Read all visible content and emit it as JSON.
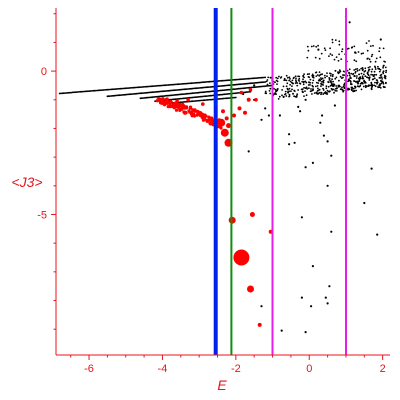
{
  "chart_data": {
    "type": "scatter",
    "xlabel": "E",
    "ylabel": "<J3>",
    "xlim": [
      -6.9,
      2.2
    ],
    "ylim": [
      -9.9,
      2.2
    ],
    "grid": false,
    "x_ticks": [
      -6,
      -4,
      -2,
      0,
      2
    ],
    "y_ticks": [
      0,
      -5
    ],
    "colors": {
      "axis": "#e8141c",
      "black_series": "#000000",
      "red_series": "#ff0000",
      "blue_line": "#0022ee",
      "green_line": "#128c12",
      "magenta_line": "#e81ee8"
    },
    "vertical_lines": [
      {
        "x": -2.55,
        "color": "#0022ee",
        "width": 4
      },
      {
        "x": -2.12,
        "color": "#128c12",
        "width": 2
      },
      {
        "x": -1.0,
        "color": "#e81ee8",
        "width": 2
      },
      {
        "x": 1.0,
        "color": "#e81ee8",
        "width": 2
      }
    ],
    "series": [
      {
        "color": "#000000",
        "branches": [
          {
            "x0": -6.8,
            "y0": -0.78,
            "x1": -1.2,
            "y1": -0.22,
            "n": 160
          },
          {
            "x0": -5.5,
            "y0": -0.88,
            "x1": -1.2,
            "y1": -0.38,
            "n": 130
          },
          {
            "x0": -4.6,
            "y0": -0.95,
            "x1": -1.0,
            "y1": -0.5,
            "n": 110
          },
          {
            "x0": -4.2,
            "y0": -1.05,
            "x1": -1.6,
            "y1": -0.72,
            "n": 75
          },
          {
            "x0": -3.8,
            "y0": -1.12,
            "x1": -2.0,
            "y1": -0.92,
            "n": 50
          }
        ],
        "cloud": {
          "x0": -1.2,
          "x1": 2.1,
          "y0": -1.2,
          "y1": 0.5,
          "n": 500,
          "seed": 7
        },
        "upper_cloud": {
          "x0": -0.2,
          "x1": 2.1,
          "y0": 0.3,
          "y1": 1.1,
          "n": 60,
          "seed": 11
        },
        "scattered": [
          [
            -1.3,
            -1.7
          ],
          [
            -1.2,
            -1.3
          ],
          [
            -1.1,
            -1.55
          ],
          [
            -0.8,
            -1.55
          ],
          [
            -0.7,
            -0.9
          ],
          [
            -0.55,
            -2.2
          ],
          [
            -0.55,
            -2.55
          ],
          [
            -0.4,
            -2.5
          ],
          [
            -0.3,
            -1.25
          ],
          [
            -0.25,
            -1.4
          ],
          [
            -0.1,
            -3.35
          ],
          [
            0.1,
            -3.2
          ],
          [
            0.2,
            -0.75
          ],
          [
            0.35,
            -1.55
          ],
          [
            0.4,
            -2.25
          ],
          [
            0.5,
            -2.45
          ],
          [
            0.5,
            -4.0
          ],
          [
            0.6,
            -2.95
          ],
          [
            0.7,
            -1.2
          ],
          [
            0.75,
            -0.6
          ],
          [
            1.2,
            -0.7
          ],
          [
            1.5,
            -4.6
          ],
          [
            1.7,
            -3.4
          ],
          [
            1.85,
            -5.7
          ],
          [
            -0.2,
            -5.1
          ],
          [
            0.6,
            -5.6
          ],
          [
            0.1,
            -6.8
          ],
          [
            0.55,
            -7.5
          ],
          [
            -0.2,
            -7.9
          ],
          [
            0.05,
            -8.2
          ],
          [
            0.45,
            -7.9
          ],
          [
            0.5,
            -8.1
          ],
          [
            -1.3,
            -8.2
          ],
          [
            -0.75,
            -9.05
          ],
          [
            -0.1,
            -9.1
          ],
          [
            -1.8,
            -0.8
          ],
          [
            -1.5,
            -1.0
          ],
          [
            -0.9,
            -0.7
          ],
          [
            -1.5,
            -0.5
          ],
          [
            -0.1,
            -1.0
          ],
          [
            0.3,
            -1.8
          ],
          [
            -1.65,
            -2.8
          ],
          [
            1.25,
            0.65
          ],
          [
            1.1,
            1.7
          ],
          [
            1.0,
            1.9
          ],
          [
            1.95,
            1.1
          ],
          [
            0.25,
            0.75
          ]
        ]
      },
      {
        "color": "#ff0000",
        "branch": {
          "x0": -4.1,
          "y0": -1.05,
          "x1": -2.4,
          "y1": -1.9,
          "n": 140,
          "seed": 3
        },
        "points": [
          [
            -2.4,
            -1.8,
            4
          ],
          [
            -2.3,
            -2.15,
            4
          ],
          [
            -2.2,
            -2.5,
            4
          ],
          [
            -2.1,
            -5.2,
            3.5
          ],
          [
            -1.85,
            -6.5,
            8
          ],
          [
            -1.6,
            -7.6,
            3.5
          ],
          [
            -1.55,
            -5.0,
            2.5
          ],
          [
            -1.35,
            -8.85,
            2
          ],
          [
            -1.05,
            -5.6,
            2
          ],
          [
            -2.35,
            -1.4,
            2
          ],
          [
            -2.25,
            -1.65,
            2
          ],
          [
            -2.2,
            -1.9,
            2.5
          ],
          [
            -2.05,
            -1.55,
            2
          ],
          [
            -1.9,
            -1.3,
            2
          ],
          [
            -1.75,
            -1.45,
            2
          ],
          [
            -1.65,
            -1.0,
            2
          ],
          [
            -1.85,
            -0.75,
            1.8
          ],
          [
            -1.6,
            -0.65,
            1.8
          ],
          [
            -1.45,
            -1.0,
            1.8
          ],
          [
            -3.6,
            -1.05,
            1.8
          ],
          [
            -3.3,
            -1.0,
            1.8
          ],
          [
            -2.9,
            -1.15,
            1.8
          ]
        ]
      }
    ]
  }
}
